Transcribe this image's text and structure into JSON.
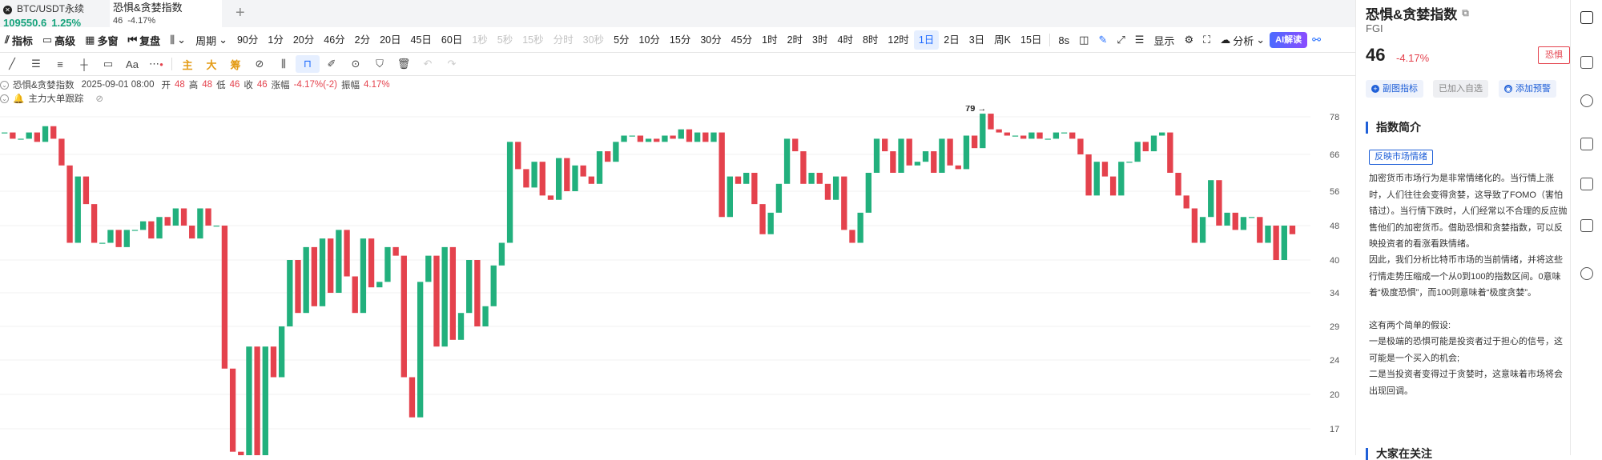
{
  "tabs": [
    {
      "name": "BTC/USDT永续",
      "price": "109550.6",
      "change": "1.25%"
    },
    {
      "name": "恐惧&贪婪指数",
      "price": "46",
      "change": "-4.17%"
    }
  ],
  "toolbar": {
    "indicator": "指标",
    "advanced": "高级",
    "multi_window": "多窗",
    "replay": "复盘",
    "period_label": "周期",
    "periods": [
      "90分",
      "1分",
      "20分",
      "46分",
      "2分",
      "20日",
      "45日",
      "60日",
      "1秒",
      "5秒",
      "15秒",
      "分时",
      "30秒",
      "5分",
      "10分",
      "15分",
      "30分",
      "45分",
      "1时",
      "2时",
      "3时",
      "4时",
      "8时",
      "12时",
      "1日",
      "2日",
      "3日",
      "周K",
      "15日"
    ],
    "period_states": [
      "n",
      "n",
      "n",
      "n",
      "n",
      "n",
      "n",
      "n",
      "d",
      "d",
      "d",
      "d",
      "d",
      "n",
      "n",
      "n",
      "n",
      "n",
      "n",
      "n",
      "n",
      "n",
      "n",
      "n",
      "a",
      "n",
      "n",
      "n",
      "n"
    ],
    "interval_8s": "8s",
    "display": "显示",
    "analysis": "分析",
    "ai": "AI解读"
  },
  "drawbar": {
    "labels": [
      "主",
      "大",
      "筹"
    ],
    "text_tool": "Aa"
  },
  "info": {
    "indicator_name": "恐惧&贪婪指数",
    "datetime": "2025-09-01 08:00",
    "open_label": "开",
    "open": "48",
    "high_label": "高",
    "high": "48",
    "low_label": "低",
    "low": "46",
    "close_label": "收",
    "close": "46",
    "chg_label": "涨幅",
    "chg": "-4.17%(-2)",
    "amp_label": "振幅",
    "amp": "4.17%",
    "sub_indicator": "主力大单跟踪"
  },
  "chart_data": {
    "type": "candlestick",
    "y_ticks": [
      "78",
      "66",
      "56",
      "48",
      "40",
      "34",
      "29",
      "24",
      "20",
      "17"
    ],
    "max_label": "79",
    "colors": {
      "up": "#22b07d",
      "down": "#e4424d"
    },
    "candles": [
      [
        73,
        73
      ],
      [
        73,
        71
      ],
      [
        71,
        71
      ],
      [
        71,
        73
      ],
      [
        73,
        70
      ],
      [
        70,
        75
      ],
      [
        75,
        71
      ],
      [
        71,
        63
      ],
      [
        63,
        44
      ],
      [
        44,
        60
      ],
      [
        60,
        53
      ],
      [
        53,
        44
      ],
      [
        44,
        44
      ],
      [
        44,
        47
      ],
      [
        47,
        43
      ],
      [
        43,
        47
      ],
      [
        47,
        47
      ],
      [
        47,
        49
      ],
      [
        49,
        45
      ],
      [
        45,
        50
      ],
      [
        50,
        48
      ],
      [
        48,
        52
      ],
      [
        52,
        48
      ],
      [
        48,
        45
      ],
      [
        45,
        52
      ],
      [
        52,
        48
      ],
      [
        48,
        48
      ],
      [
        48,
        23
      ],
      [
        23,
        15
      ],
      [
        15,
        14
      ],
      [
        14,
        26
      ],
      [
        26,
        14
      ],
      [
        14,
        26
      ],
      [
        26,
        22
      ],
      [
        22,
        29
      ],
      [
        29,
        40
      ],
      [
        40,
        31
      ],
      [
        31,
        43
      ],
      [
        43,
        32
      ],
      [
        32,
        45
      ],
      [
        45,
        34
      ],
      [
        34,
        47
      ],
      [
        47,
        37
      ],
      [
        37,
        31
      ],
      [
        31,
        45
      ],
      [
        45,
        35
      ],
      [
        35,
        36
      ],
      [
        36,
        43
      ],
      [
        43,
        41
      ],
      [
        41,
        22
      ],
      [
        22,
        18
      ],
      [
        18,
        36
      ],
      [
        36,
        41
      ],
      [
        41,
        26
      ],
      [
        26,
        43
      ],
      [
        43,
        27
      ],
      [
        27,
        31
      ],
      [
        31,
        40
      ],
      [
        40,
        29
      ],
      [
        29,
        32
      ],
      [
        32,
        39
      ],
      [
        39,
        44
      ],
      [
        44,
        70
      ],
      [
        70,
        62
      ],
      [
        62,
        57
      ],
      [
        57,
        64
      ],
      [
        64,
        55
      ],
      [
        55,
        54
      ],
      [
        54,
        65
      ],
      [
        65,
        56
      ],
      [
        56,
        63
      ],
      [
        63,
        60
      ],
      [
        60,
        58
      ],
      [
        58,
        67
      ],
      [
        67,
        64
      ],
      [
        64,
        70
      ],
      [
        70,
        72
      ],
      [
        72,
        72
      ],
      [
        72,
        70
      ],
      [
        70,
        71
      ],
      [
        71,
        70
      ],
      [
        70,
        72
      ],
      [
        72,
        71
      ],
      [
        71,
        74
      ],
      [
        74,
        70
      ],
      [
        70,
        73
      ],
      [
        73,
        70
      ],
      [
        70,
        73
      ],
      [
        73,
        50
      ],
      [
        50,
        60
      ],
      [
        60,
        58
      ],
      [
        58,
        61
      ],
      [
        61,
        53
      ],
      [
        53,
        46
      ],
      [
        46,
        51
      ],
      [
        51,
        58
      ],
      [
        58,
        71
      ],
      [
        71,
        67
      ],
      [
        67,
        58
      ],
      [
        58,
        61
      ],
      [
        61,
        58
      ],
      [
        58,
        54
      ],
      [
        54,
        60
      ],
      [
        60,
        47
      ],
      [
        47,
        44
      ],
      [
        44,
        51
      ],
      [
        51,
        61
      ],
      [
        61,
        71
      ],
      [
        71,
        67
      ],
      [
        67,
        61
      ],
      [
        61,
        71
      ],
      [
        71,
        63
      ],
      [
        63,
        64
      ],
      [
        64,
        67
      ],
      [
        67,
        61
      ],
      [
        61,
        71
      ],
      [
        71,
        63
      ],
      [
        63,
        62
      ],
      [
        62,
        72
      ],
      [
        72,
        68
      ],
      [
        68,
        79
      ],
      [
        79,
        74
      ],
      [
        74,
        73
      ],
      [
        73,
        72
      ],
      [
        72,
        72
      ],
      [
        72,
        71
      ],
      [
        71,
        73
      ],
      [
        73,
        71
      ],
      [
        71,
        71
      ],
      [
        71,
        73
      ],
      [
        73,
        73
      ],
      [
        73,
        71
      ],
      [
        71,
        66
      ],
      [
        66,
        55
      ],
      [
        55,
        64
      ],
      [
        64,
        60
      ],
      [
        60,
        55
      ],
      [
        55,
        64
      ],
      [
        64,
        64
      ],
      [
        64,
        70
      ],
      [
        70,
        67
      ],
      [
        67,
        72
      ],
      [
        72,
        73
      ],
      [
        73,
        61
      ],
      [
        61,
        55
      ],
      [
        55,
        52
      ],
      [
        52,
        44
      ],
      [
        44,
        50
      ],
      [
        50,
        59
      ],
      [
        59,
        48
      ],
      [
        48,
        51
      ],
      [
        51,
        47
      ],
      [
        47,
        50
      ],
      [
        50,
        50
      ],
      [
        50,
        44
      ],
      [
        44,
        48
      ],
      [
        48,
        40
      ],
      [
        40,
        48
      ],
      [
        48,
        46
      ]
    ]
  },
  "panel": {
    "title": "恐惧&贪婪指数",
    "code": "FGI",
    "value": "46",
    "change": "-4.17%",
    "badge": "恐惧",
    "btn_sub_indicator": "副图指标",
    "btn_added": "已加入自选",
    "btn_alert": "添加预警",
    "section_intro": "指数简介",
    "tag": "反映市场情绪",
    "desc1": "加密货币市场行为是非常情绪化的。当行情上涨时，人们往往会变得贪婪，这导致了FOMO（害怕错过）。当行情下跌时，人们经常以不合理的反应抛售他们的加密货币。借助恐惧和贪婪指数，可以反映投资者的看涨看跌情绪。",
    "desc2": "因此，我们分析比特币市场的当前情绪，并将这些行情走势压缩成一个从0到100的指数区间。0意味着“极度恐惧”，而100则意味着“极度贪婪”。",
    "desc3": "这有两个简单的假设:",
    "desc4": "一是极端的恐惧可能是投资者过于担心的信号，这可能是一个买入的机会;",
    "desc5": "二是当投资者变得过于贪婪时，这意味着市场将会出现回调。",
    "section_bottom": "大家在关注"
  }
}
